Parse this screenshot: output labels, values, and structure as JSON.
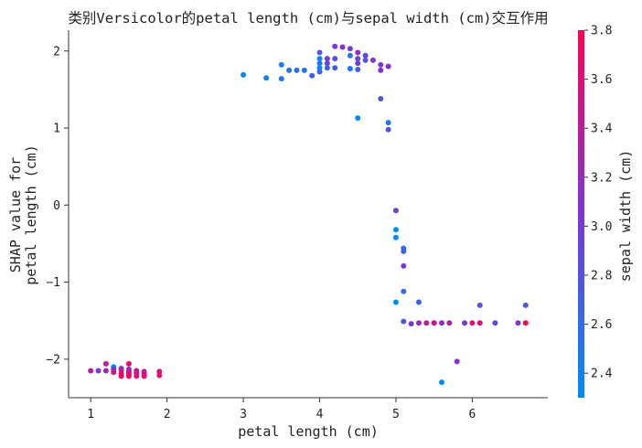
{
  "chart_data": {
    "type": "scatter",
    "title": "类别Versicolor的petal length (cm)与sepal width (cm)交互作用",
    "xlabel": "petal length (cm)",
    "ylabel_lines": [
      "SHAP value for",
      "petal length (cm)"
    ],
    "colorbar_label": "sepal width (cm)",
    "xlim": [
      0.71,
      6.99
    ],
    "ylim": [
      -2.5,
      2.27
    ],
    "xticks": [
      1,
      2,
      3,
      4,
      5,
      6
    ],
    "xtick_labels": [
      "1",
      "2",
      "3",
      "4",
      "5",
      "6"
    ],
    "yticks": [
      -2,
      -1,
      0,
      1,
      2
    ],
    "ytick_labels": [
      "−2",
      "−1",
      "0",
      "1",
      "2"
    ],
    "color_range": [
      2.3,
      3.8
    ],
    "color_ticks": [
      2.4,
      2.6,
      2.8,
      3.0,
      3.2,
      3.4,
      3.6,
      3.8
    ],
    "color_tick_labels": [
      "2.4",
      "2.6",
      "2.8",
      "3.0",
      "3.2",
      "3.4",
      "3.6",
      "3.8"
    ],
    "colors": {
      "low": "#008bfb",
      "mid": "#7c35d8",
      "high": "#ff0052"
    },
    "grid": false,
    "points": [
      {
        "x": 1.0,
        "y": -2.15,
        "c": 3.4
      },
      {
        "x": 1.1,
        "y": -2.15,
        "c": 3.0
      },
      {
        "x": 1.2,
        "y": -2.06,
        "c": 3.5
      },
      {
        "x": 1.2,
        "y": -2.15,
        "c": 3.3
      },
      {
        "x": 1.3,
        "y": -2.1,
        "c": 2.3
      },
      {
        "x": 1.3,
        "y": -2.13,
        "c": 3.2
      },
      {
        "x": 1.3,
        "y": -2.17,
        "c": 3.5
      },
      {
        "x": 1.4,
        "y": -2.12,
        "c": 3.0
      },
      {
        "x": 1.4,
        "y": -2.15,
        "c": 3.5
      },
      {
        "x": 1.4,
        "y": -2.19,
        "c": 3.6
      },
      {
        "x": 1.4,
        "y": -2.22,
        "c": 3.7
      },
      {
        "x": 1.5,
        "y": -2.06,
        "c": 3.7
      },
      {
        "x": 1.5,
        "y": -2.13,
        "c": 3.1
      },
      {
        "x": 1.5,
        "y": -2.16,
        "c": 3.4
      },
      {
        "x": 1.5,
        "y": -2.19,
        "c": 3.6
      },
      {
        "x": 1.5,
        "y": -2.22,
        "c": 3.7
      },
      {
        "x": 1.6,
        "y": -2.15,
        "c": 3.4
      },
      {
        "x": 1.6,
        "y": -2.18,
        "c": 3.5
      },
      {
        "x": 1.6,
        "y": -2.22,
        "c": 3.6
      },
      {
        "x": 1.7,
        "y": -2.16,
        "c": 3.3
      },
      {
        "x": 1.7,
        "y": -2.19,
        "c": 3.5
      },
      {
        "x": 1.7,
        "y": -2.22,
        "c": 3.7
      },
      {
        "x": 1.9,
        "y": -2.16,
        "c": 3.5
      },
      {
        "x": 1.9,
        "y": -2.21,
        "c": 3.7
      },
      {
        "x": 3.0,
        "y": 1.69,
        "c": 2.3
      },
      {
        "x": 3.3,
        "y": 1.65,
        "c": 2.4
      },
      {
        "x": 3.5,
        "y": 1.82,
        "c": 2.4
      },
      {
        "x": 3.5,
        "y": 1.64,
        "c": 2.5
      },
      {
        "x": 3.6,
        "y": 1.75,
        "c": 2.5
      },
      {
        "x": 3.7,
        "y": 1.75,
        "c": 2.6
      },
      {
        "x": 3.8,
        "y": 1.75,
        "c": 2.5
      },
      {
        "x": 3.9,
        "y": 1.68,
        "c": 2.7
      },
      {
        "x": 4.0,
        "y": 1.98,
        "c": 2.8
      },
      {
        "x": 4.0,
        "y": 1.9,
        "c": 2.2
      },
      {
        "x": 4.0,
        "y": 1.84,
        "c": 2.5
      },
      {
        "x": 4.0,
        "y": 1.78,
        "c": 2.3
      },
      {
        "x": 4.0,
        "y": 1.73,
        "c": 2.6
      },
      {
        "x": 4.1,
        "y": 1.9,
        "c": 3.0
      },
      {
        "x": 4.1,
        "y": 1.84,
        "c": 2.9
      },
      {
        "x": 4.1,
        "y": 1.78,
        "c": 2.7
      },
      {
        "x": 4.2,
        "y": 2.06,
        "c": 3.0
      },
      {
        "x": 4.2,
        "y": 1.9,
        "c": 2.8
      },
      {
        "x": 4.2,
        "y": 1.78,
        "c": 2.7
      },
      {
        "x": 4.3,
        "y": 2.05,
        "c": 3.1
      },
      {
        "x": 4.4,
        "y": 2.03,
        "c": 3.0
      },
      {
        "x": 4.4,
        "y": 1.94,
        "c": 2.5
      },
      {
        "x": 4.4,
        "y": 1.77,
        "c": 2.5
      },
      {
        "x": 4.5,
        "y": 1.98,
        "c": 3.2
      },
      {
        "x": 4.5,
        "y": 1.9,
        "c": 2.9
      },
      {
        "x": 4.5,
        "y": 1.84,
        "c": 3.0
      },
      {
        "x": 4.5,
        "y": 1.76,
        "c": 2.7
      },
      {
        "x": 4.5,
        "y": 1.13,
        "c": 2.2
      },
      {
        "x": 4.6,
        "y": 1.94,
        "c": 2.9
      },
      {
        "x": 4.6,
        "y": 1.88,
        "c": 2.8
      },
      {
        "x": 4.7,
        "y": 1.88,
        "c": 3.1
      },
      {
        "x": 4.8,
        "y": 1.82,
        "c": 3.0
      },
      {
        "x": 4.8,
        "y": 1.75,
        "c": 3.1
      },
      {
        "x": 4.8,
        "y": 1.38,
        "c": 2.8
      },
      {
        "x": 4.9,
        "y": 1.8,
        "c": 3.1
      },
      {
        "x": 4.9,
        "y": 1.07,
        "c": 2.5
      },
      {
        "x": 4.9,
        "y": 0.98,
        "c": 2.8
      },
      {
        "x": 5.0,
        "y": -0.07,
        "c": 3.0
      },
      {
        "x": 5.0,
        "y": -0.32,
        "c": 2.3
      },
      {
        "x": 5.0,
        "y": -0.42,
        "c": 2.3
      },
      {
        "x": 5.0,
        "y": -1.26,
        "c": 2.3
      },
      {
        "x": 5.1,
        "y": -0.56,
        "c": 2.5
      },
      {
        "x": 5.1,
        "y": -0.6,
        "c": 2.7
      },
      {
        "x": 5.1,
        "y": -0.79,
        "c": 3.0
      },
      {
        "x": 5.1,
        "y": -1.12,
        "c": 2.6
      },
      {
        "x": 5.1,
        "y": -1.51,
        "c": 2.8
      },
      {
        "x": 5.2,
        "y": -1.54,
        "c": 3.0
      },
      {
        "x": 5.3,
        "y": -1.26,
        "c": 2.7
      },
      {
        "x": 5.3,
        "y": -1.53,
        "c": 3.2
      },
      {
        "x": 5.4,
        "y": -1.53,
        "c": 3.4
      },
      {
        "x": 5.5,
        "y": -1.53,
        "c": 3.0
      },
      {
        "x": 5.5,
        "y": -1.53,
        "c": 3.5
      },
      {
        "x": 5.6,
        "y": -1.53,
        "c": 3.2
      },
      {
        "x": 5.6,
        "y": -2.3,
        "c": 2.3
      },
      {
        "x": 5.7,
        "y": -1.53,
        "c": 3.3
      },
      {
        "x": 5.8,
        "y": -2.03,
        "c": 3.1
      },
      {
        "x": 5.9,
        "y": -1.53,
        "c": 3.0
      },
      {
        "x": 6.0,
        "y": -1.53,
        "c": 3.5
      },
      {
        "x": 6.1,
        "y": -1.3,
        "c": 2.8
      },
      {
        "x": 6.1,
        "y": -1.53,
        "c": 3.6
      },
      {
        "x": 6.3,
        "y": -1.53,
        "c": 2.9
      },
      {
        "x": 6.6,
        "y": -1.53,
        "c": 3.0
      },
      {
        "x": 6.7,
        "y": -1.3,
        "c": 2.8
      },
      {
        "x": 6.7,
        "y": -1.53,
        "c": 3.8
      }
    ]
  }
}
